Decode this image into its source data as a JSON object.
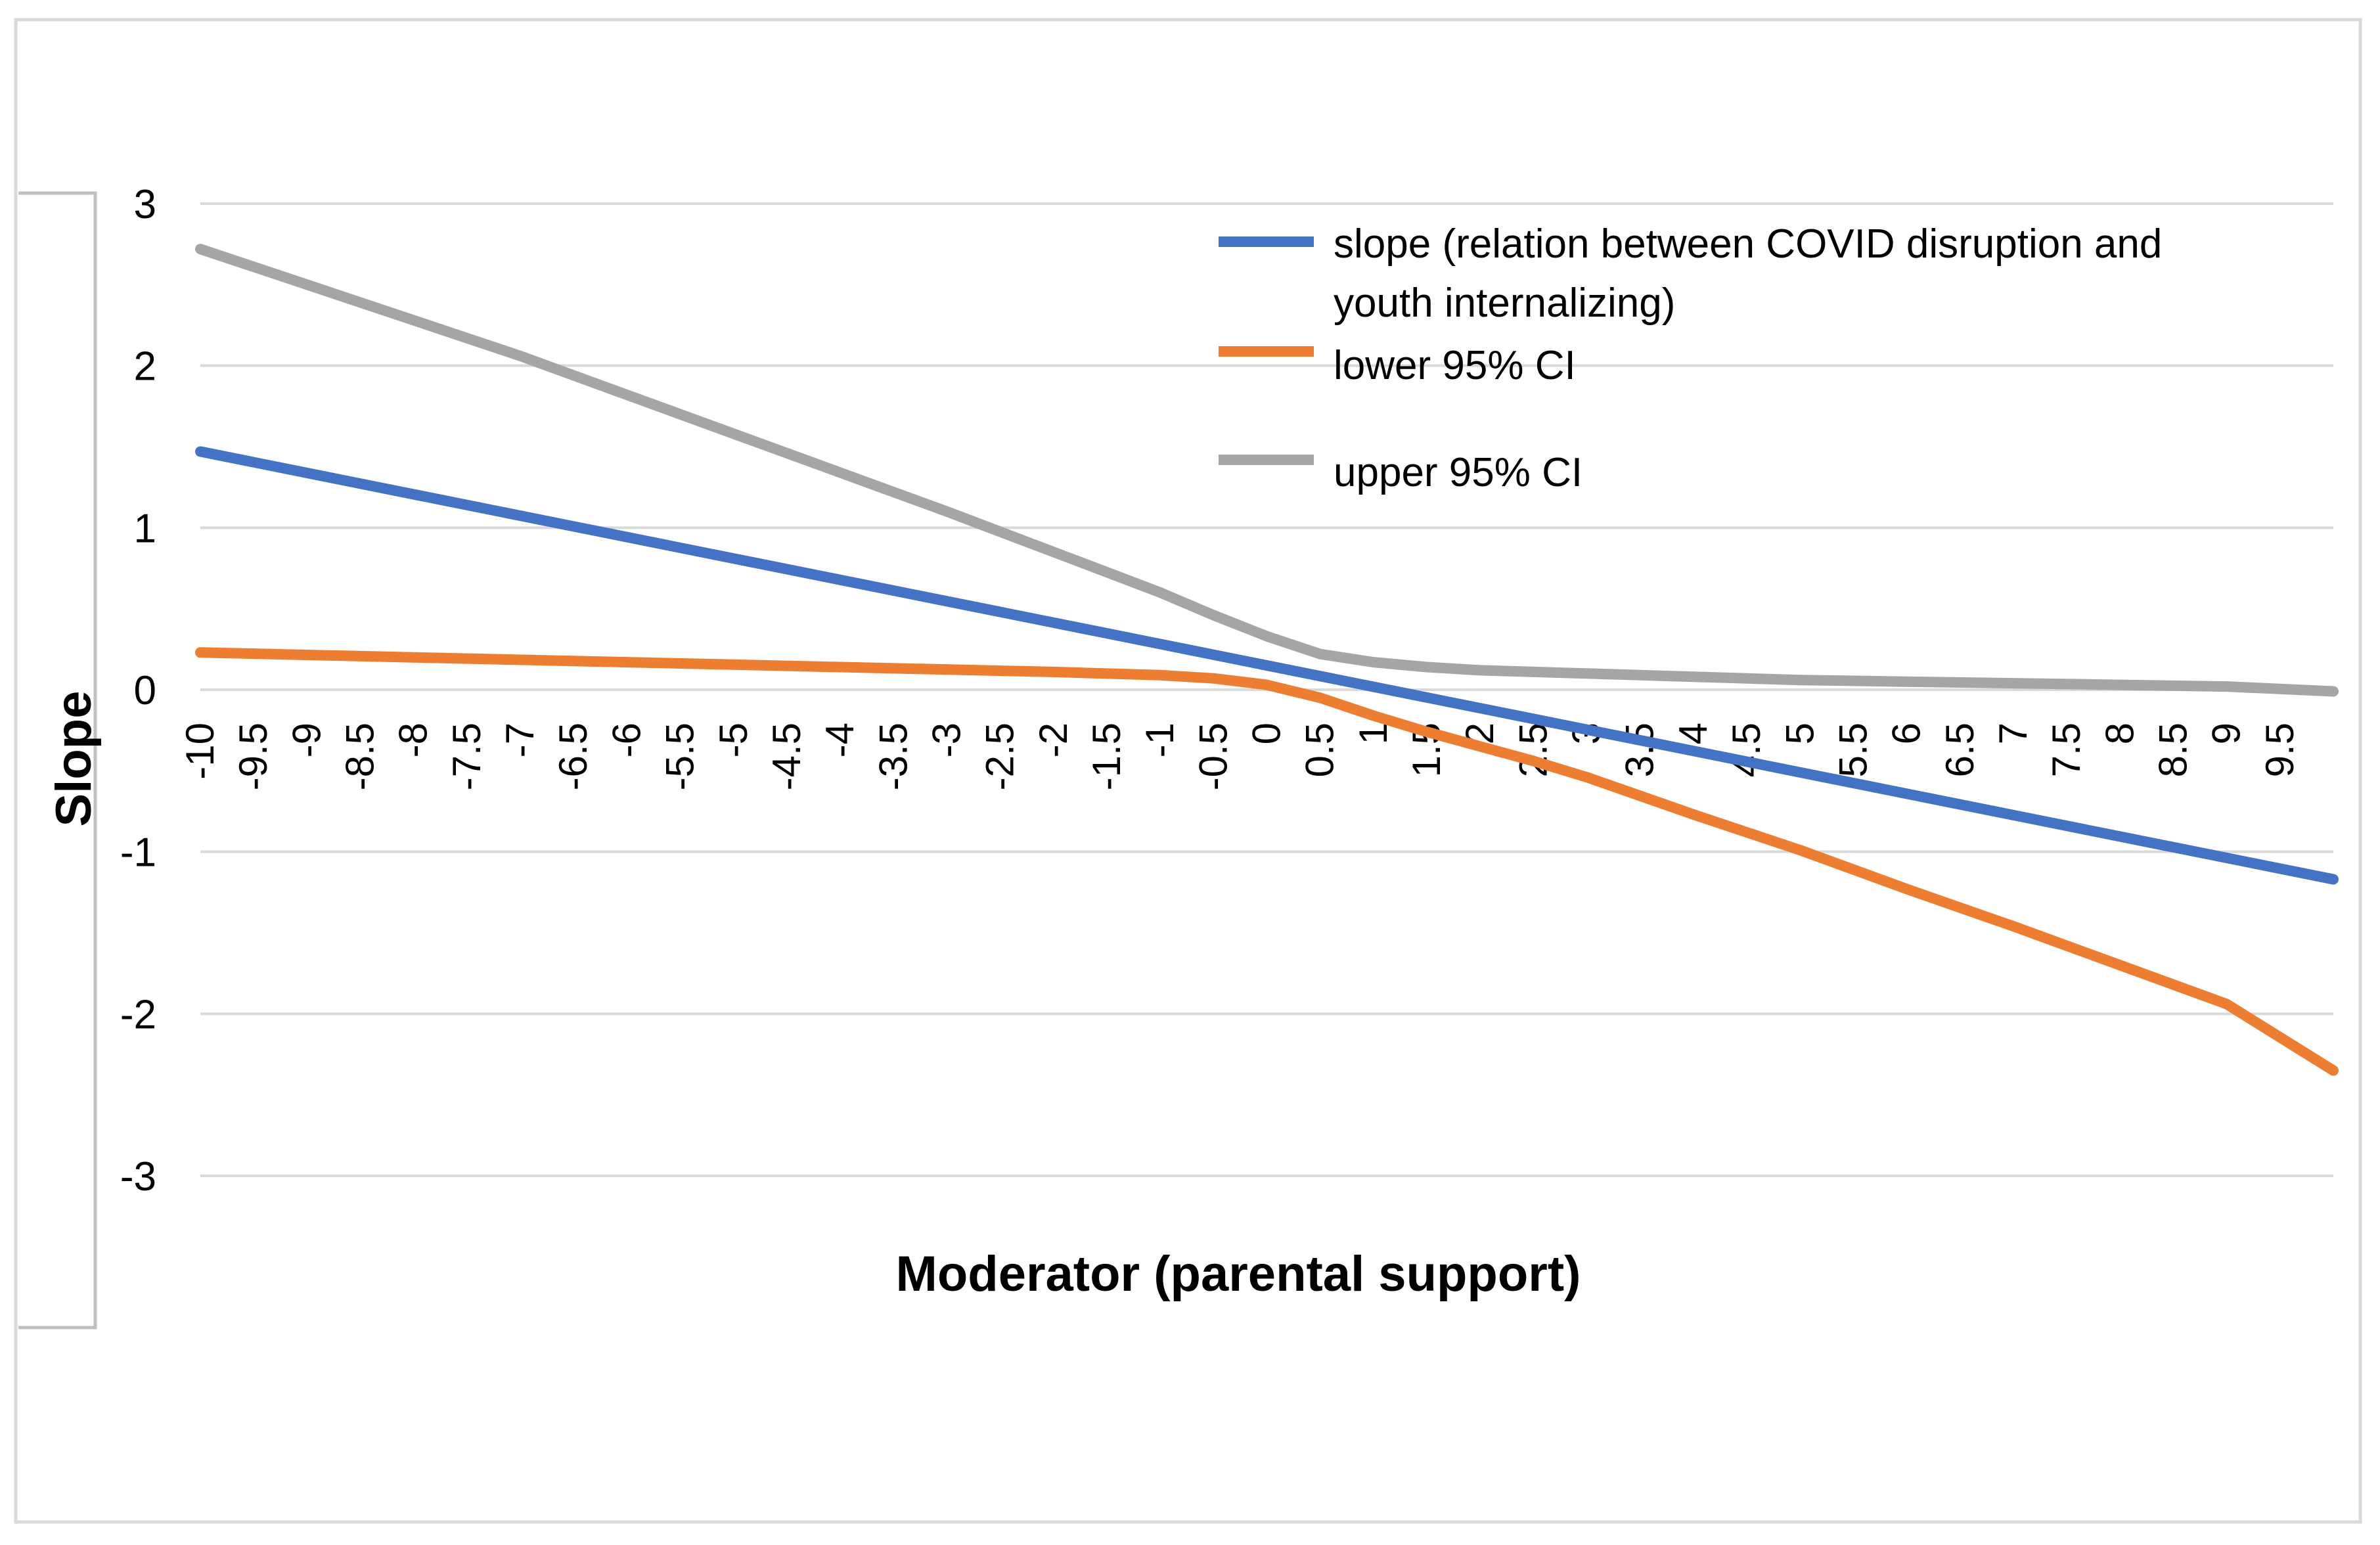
{
  "chart_data": {
    "type": "line",
    "title": "",
    "xlabel": "Moderator (parental support)",
    "ylabel": "Slope",
    "ylim": [
      -3,
      3
    ],
    "yticks": [
      "3",
      "2",
      "1",
      "0",
      "-1",
      "-2",
      "-3"
    ],
    "x": [
      -10,
      10
    ],
    "xtick_labels": [
      "-10",
      "-9.5",
      "-9",
      "-8.5",
      "-8",
      "-7.5",
      "-7",
      "-6.5",
      "-6",
      "-5.5",
      "-5",
      "-4.5",
      "-4",
      "-3.5",
      "-3",
      "-2.5",
      "-2",
      "-1.5",
      "-1",
      "-0.5",
      "0",
      "0.5",
      "1",
      "1.5",
      "2",
      "2.5",
      "3",
      "3.5",
      "4",
      "4.5",
      "5",
      "5.5",
      "6",
      "6.5",
      "7",
      "7.5",
      "8",
      "8.5",
      "9",
      "9.5"
    ],
    "grid": true,
    "legend_position": "top-right",
    "series": [
      {
        "name": "slope (relation between COVID disruption and youth internalizing)",
        "legend_lines": [
          "slope (relation between COVID disruption and",
          "youth internalizing)"
        ],
        "color": "#4472c4",
        "x": [
          -10,
          10
        ],
        "y": [
          1.47,
          -1.17
        ]
      },
      {
        "name": "lower 95% CI",
        "legend_lines": [
          "lower 95% CI"
        ],
        "color": "#ed7d31",
        "x": [
          -10,
          -8,
          -6,
          -4,
          -2,
          -1,
          -0.5,
          0,
          0.5,
          1,
          1.5,
          2,
          2.5,
          3,
          4,
          5,
          6,
          7,
          8,
          9,
          10
        ],
        "y": [
          0.23,
          0.2,
          0.17,
          0.14,
          0.11,
          0.09,
          0.07,
          0.03,
          -0.05,
          -0.16,
          -0.26,
          -0.35,
          -0.44,
          -0.54,
          -0.77,
          -0.99,
          -1.23,
          -1.46,
          -1.7,
          -1.94,
          -2.35
        ]
      },
      {
        "name": "upper 95% CI",
        "legend_lines": [
          "upper 95% CI"
        ],
        "color": "#a5a5a5",
        "x": [
          -10,
          -9,
          -8,
          -7,
          -6,
          -5,
          -4,
          -3,
          -2,
          -1,
          -0.5,
          0,
          0.5,
          1,
          1.5,
          2,
          3,
          4,
          5,
          6,
          7,
          8,
          9,
          10
        ],
        "y": [
          2.72,
          2.5,
          2.28,
          2.06,
          1.82,
          1.58,
          1.34,
          1.1,
          0.85,
          0.6,
          0.46,
          0.33,
          0.22,
          0.17,
          0.14,
          0.12,
          0.1,
          0.08,
          0.06,
          0.05,
          0.04,
          0.03,
          0.02,
          -0.01
        ]
      }
    ]
  }
}
